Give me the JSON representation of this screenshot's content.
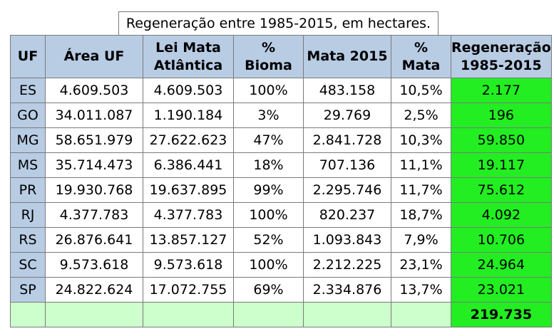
{
  "title": "Regeneração entre 1985-2015, em hectares.",
  "headers": [
    {
      "l1": "UF",
      "l2": ""
    },
    {
      "l1": "Área UF",
      "l2": ""
    },
    {
      "l1": "Lei Mata",
      "l2": "Atlântica"
    },
    {
      "l1": "%",
      "l2": "Bioma"
    },
    {
      "l1": "Mata 2015",
      "l2": ""
    },
    {
      "l1": "%",
      "l2": "Mata"
    },
    {
      "l1": "Regeneração",
      "l2": "1985-2015"
    }
  ],
  "rows": [
    [
      "ES",
      "4.609.503",
      "4.609.503",
      "100%",
      "483.158",
      "10,5%",
      "2.177"
    ],
    [
      "GO",
      "34.011.087",
      "1.190.184",
      "3%",
      "29.769",
      "2,5%",
      "196"
    ],
    [
      "MG",
      "58.651.979",
      "27.622.623",
      "47%",
      "2.841.728",
      "10,3%",
      "59.850"
    ],
    [
      "MS",
      "35.714.473",
      "6.386.441",
      "18%",
      "707.136",
      "11,1%",
      "19.117"
    ],
    [
      "PR",
      "19.930.768",
      "19.637.895",
      "99%",
      "2.295.746",
      "11,7%",
      "75.612"
    ],
    [
      "RJ",
      "4.377.783",
      "4.377.783",
      "100%",
      "820.237",
      "18,7%",
      "4.092"
    ],
    [
      "RS",
      "26.876.641",
      "13.857.127",
      "52%",
      "1.093.843",
      "7,9%",
      "10.706"
    ],
    [
      "SC",
      "9.573.618",
      "9.573.618",
      "100%",
      "2.212.225",
      "23,1%",
      "24.964"
    ],
    [
      "SP",
      "24.822.624",
      "17.072.755",
      "69%",
      "2.334.876",
      "13,7%",
      "23.021"
    ]
  ],
  "total": "219.735",
  "colors": {
    "header": "#b8cce4",
    "regeneration": "#22ee22",
    "footer": "#ccffcc"
  }
}
